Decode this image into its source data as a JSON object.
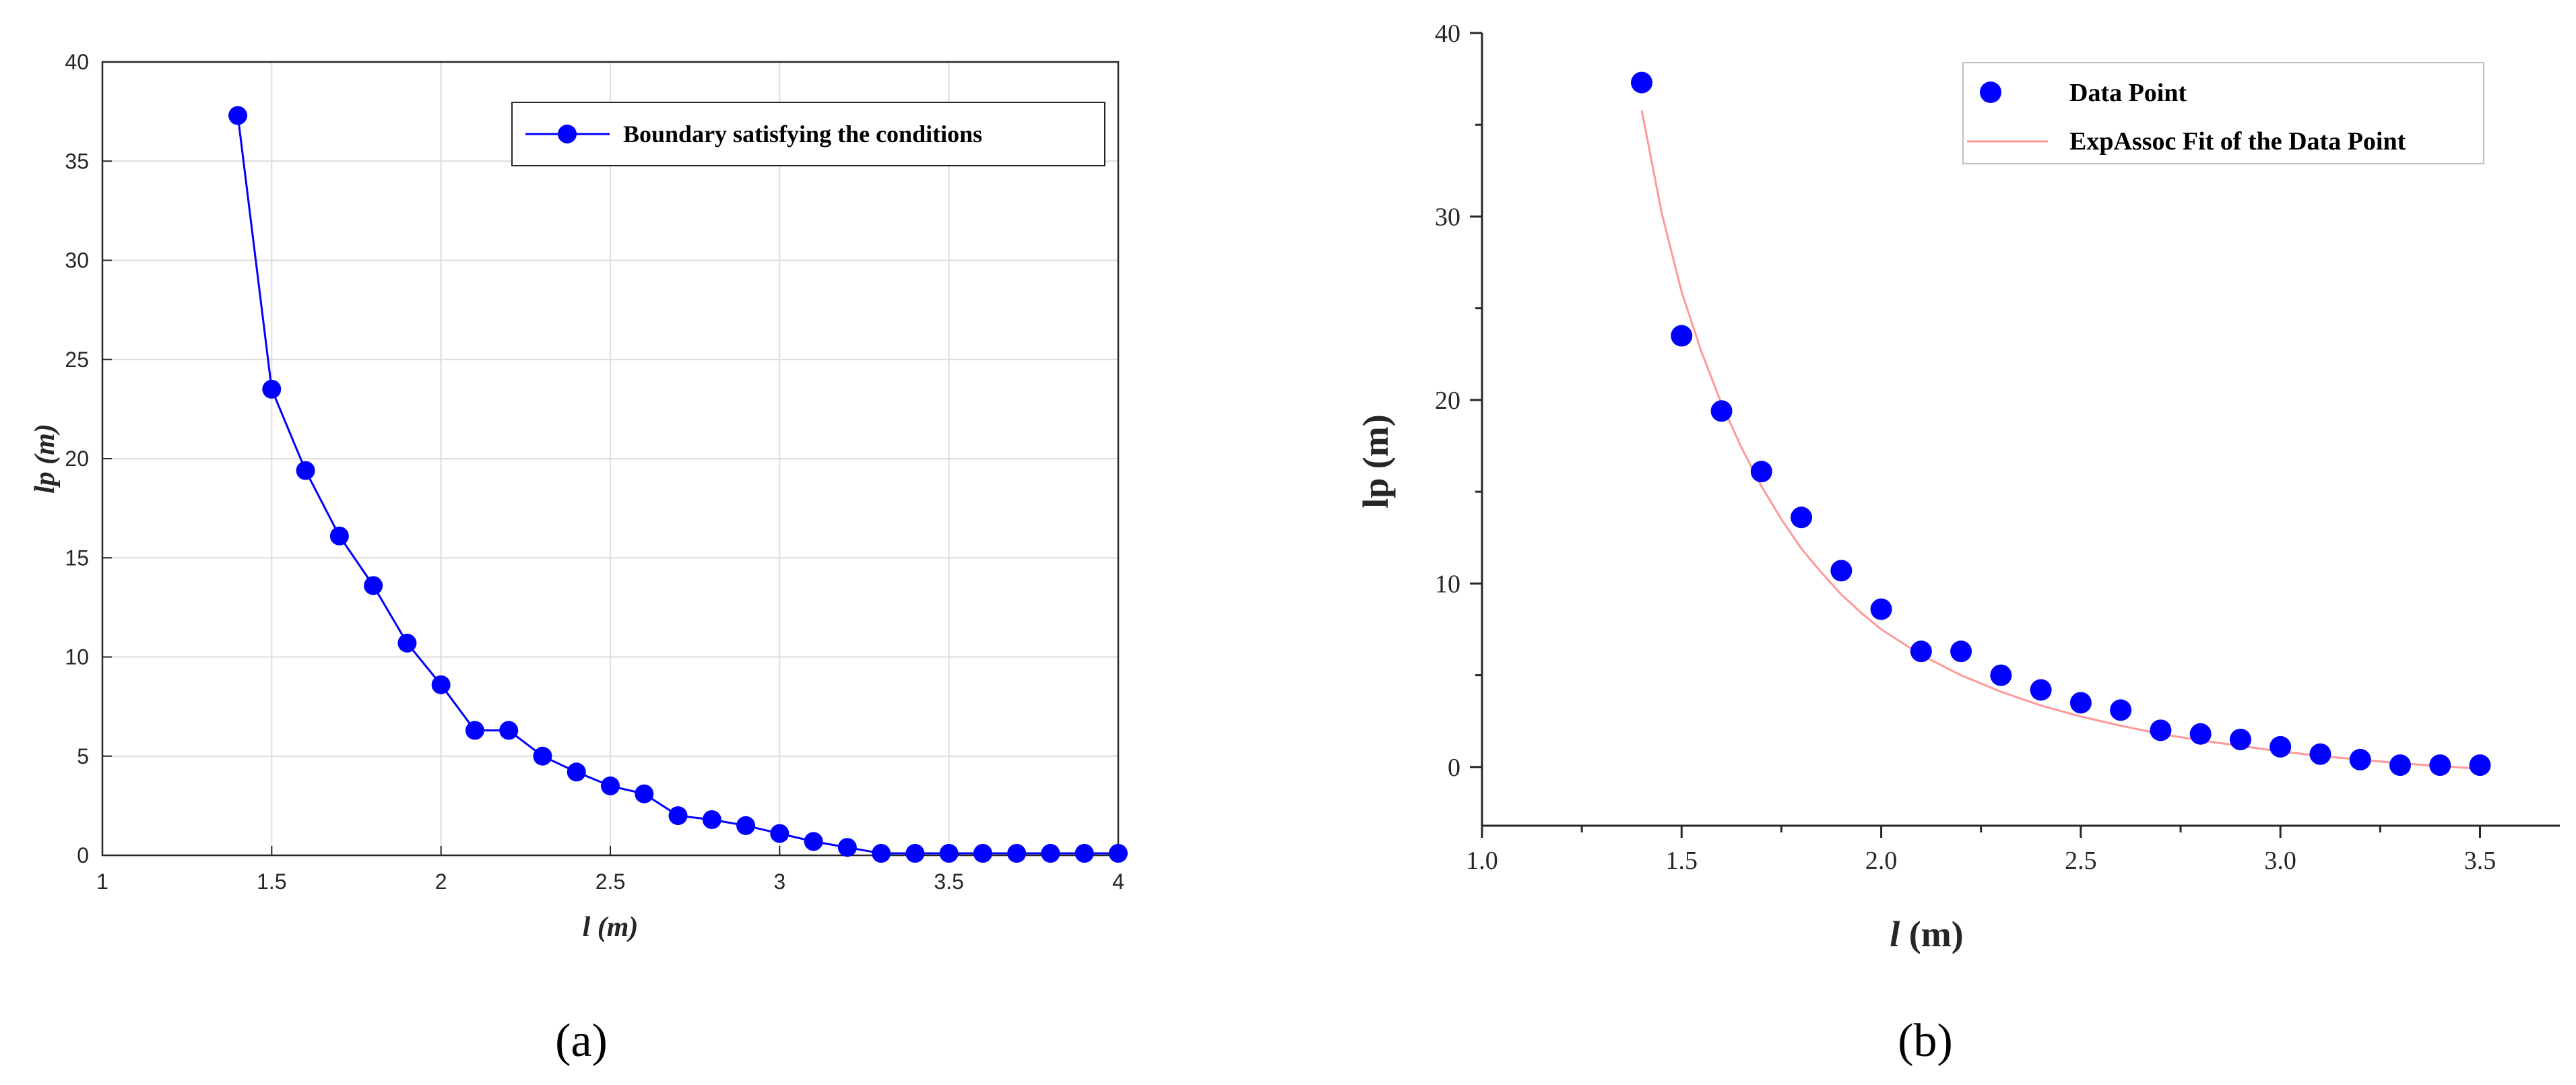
{
  "chart_data": [
    {
      "type": "line",
      "panel_label": "(a)",
      "title": "",
      "xlabel": "l (m)",
      "ylabel": "lp (m)",
      "xlim": [
        1,
        4
      ],
      "ylim": [
        0,
        40
      ],
      "xticks": [
        1,
        1.5,
        2,
        2.5,
        3,
        3.5,
        4
      ],
      "xtick_labels": [
        "1",
        "1.5",
        "2",
        "2.5",
        "3",
        "3.5",
        "4"
      ],
      "yticks": [
        0,
        5,
        10,
        15,
        20,
        25,
        30,
        35,
        40
      ],
      "ytick_labels": [
        "0",
        "5",
        "10",
        "15",
        "20",
        "25",
        "30",
        "35",
        "40"
      ],
      "grid": true,
      "legend_position": "top-right",
      "color": "#0000ff",
      "series": [
        {
          "name": "Boundary satisfying the conditions",
          "x": [
            1.4,
            1.5,
            1.6,
            1.7,
            1.8,
            1.9,
            2.0,
            2.1,
            2.2,
            2.3,
            2.4,
            2.5,
            2.6,
            2.7,
            2.8,
            2.9,
            3.0,
            3.1,
            3.2,
            3.3,
            3.4,
            3.5,
            3.6,
            3.7,
            3.8,
            3.9,
            4.0
          ],
          "y": [
            37.3,
            23.5,
            19.4,
            16.1,
            13.6,
            10.7,
            8.6,
            6.3,
            6.3,
            5.0,
            4.2,
            3.5,
            3.1,
            2.0,
            1.8,
            1.5,
            1.1,
            0.7,
            0.4,
            0.1,
            0.1,
            0.1,
            0.1,
            0.1,
            0.1,
            0.1,
            0.1
          ]
        }
      ]
    },
    {
      "type": "scatter",
      "panel_label": "(b)",
      "title": "",
      "xlabel": "l (m)",
      "ylabel": "lp (m)",
      "xlim": [
        1.0,
        3.7
      ],
      "ylim": [
        -3.2,
        40
      ],
      "xticks": [
        1.0,
        1.5,
        2.0,
        2.5,
        3.0,
        3.5
      ],
      "xtick_labels": [
        "1.0",
        "1.5",
        "2.0",
        "2.5",
        "3.0",
        "3.5"
      ],
      "yticks": [
        0,
        10,
        20,
        30,
        40
      ],
      "ytick_labels": [
        "0",
        "10",
        "20",
        "30",
        "40"
      ],
      "grid": false,
      "legend_position": "top-right",
      "point_color": "#0000ff",
      "fit_color": "#ff9999",
      "series": [
        {
          "name": "Data Point",
          "x": [
            1.4,
            1.5,
            1.6,
            1.7,
            1.8,
            1.9,
            2.0,
            2.1,
            2.2,
            2.3,
            2.4,
            2.5,
            2.6,
            2.7,
            2.8,
            2.9,
            3.0,
            3.1,
            3.2,
            3.3,
            3.4,
            3.5
          ],
          "y": [
            37.3,
            23.5,
            19.4,
            16.1,
            13.6,
            10.7,
            8.6,
            6.3,
            6.3,
            5.0,
            4.2,
            3.5,
            3.1,
            2.0,
            1.8,
            1.5,
            1.1,
            0.7,
            0.4,
            0.1,
            0.1,
            0.1
          ]
        },
        {
          "name": "ExpAssoc Fit of the Data Point",
          "x": [
            1.4,
            1.45,
            1.5,
            1.55,
            1.6,
            1.65,
            1.7,
            1.75,
            1.8,
            1.85,
            1.9,
            1.95,
            2.0,
            2.1,
            2.2,
            2.3,
            2.4,
            2.5,
            2.6,
            2.7,
            2.8,
            2.9,
            3.0,
            3.1,
            3.2,
            3.3,
            3.4,
            3.5
          ],
          "y": [
            35.8,
            30.2,
            25.9,
            22.6,
            19.8,
            17.4,
            15.3,
            13.5,
            11.9,
            10.6,
            9.4,
            8.4,
            7.5,
            6.1,
            5.0,
            4.1,
            3.35,
            2.75,
            2.25,
            1.8,
            1.45,
            1.15,
            0.85,
            0.6,
            0.4,
            0.2,
            0.05,
            -0.1
          ]
        }
      ]
    }
  ]
}
